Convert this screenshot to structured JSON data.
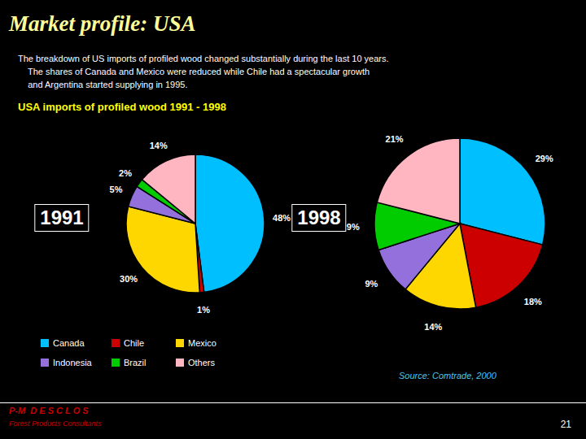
{
  "title": "Market profile: USA",
  "subtitle": "USA imports of profiled wood 1991 - 1998",
  "annotations": [
    "The breakdown of US imports of profiled wood changed substantially during the last 10 years.",
    "    The shares of Canada and Mexico were reduced while Chile had a spectacular growth",
    "    and Argentina started supplying in 1995.",
    "Source: Comtrade, 2000",
    "P-M  D E S C L O S",
    "Forest Products Consultants",
    "21"
  ],
  "chart_data": [
    {
      "type": "pie",
      "title": "1991",
      "categories": [
        "Canada",
        "Chile",
        "Mexico",
        "Indonesia",
        "Brazil",
        "Others"
      ],
      "values": [
        48,
        1,
        30,
        5,
        2,
        14
      ],
      "value_labels": [
        "48%",
        "1%",
        "30%",
        "5%",
        "2%",
        "14%"
      ],
      "colors": [
        "#00BFFF",
        "#CC0000",
        "#FFD700",
        "#9370DB",
        "#00CC00",
        "#FFB6C1"
      ],
      "data_labels": true,
      "legend": "lower left"
    },
    {
      "type": "pie",
      "title": "1998",
      "categories": [
        "Canada",
        "Chile",
        "Mexico",
        "Indonesia",
        "Brazil",
        "Others"
      ],
      "values": [
        29,
        18,
        14,
        9,
        9,
        21
      ],
      "value_labels": [
        "29%",
        "18%",
        "14%",
        "9%",
        "9%",
        "21%"
      ],
      "colors": [
        "#00BFFF",
        "#CC0000",
        "#FFD700",
        "#9370DB",
        "#00CC00",
        "#FFB6C1"
      ],
      "data_labels": true
    }
  ]
}
